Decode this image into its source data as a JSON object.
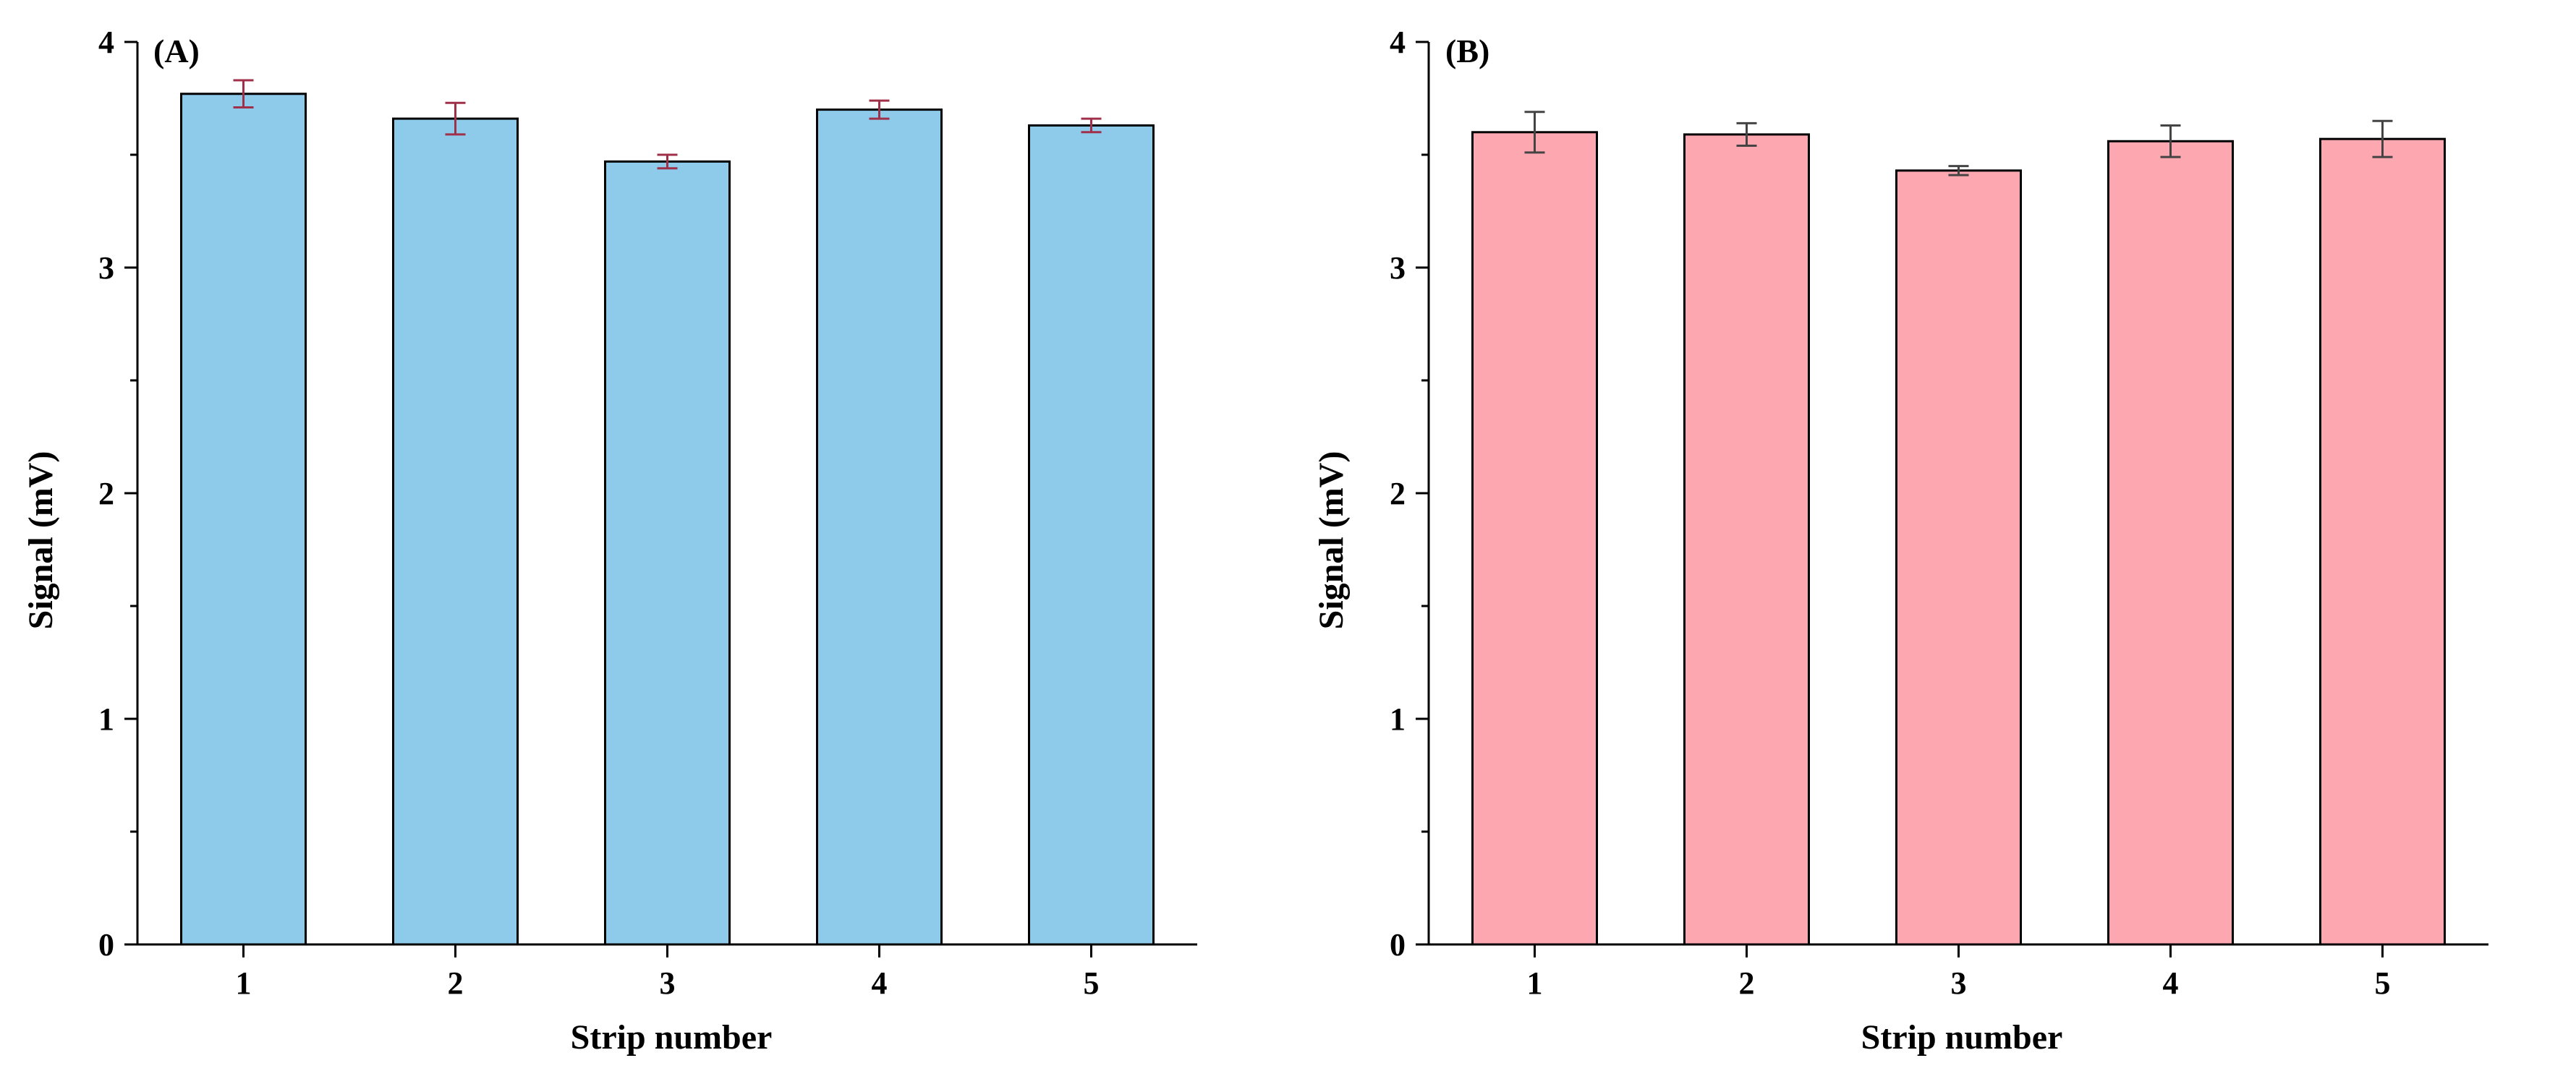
{
  "colors": {
    "panel_a_fill": "#8ecae9",
    "panel_b_fill": "#fda7b0",
    "panel_a_errorbar": "#a0304a",
    "panel_b_errorbar": "#444444",
    "axis": "#000000"
  },
  "chart_data": [
    {
      "type": "bar",
      "panel_label": "(A)",
      "categories": [
        "1",
        "2",
        "3",
        "4",
        "5"
      ],
      "values": [
        3.77,
        3.66,
        3.47,
        3.7,
        3.63
      ],
      "errors": [
        0.06,
        0.07,
        0.03,
        0.04,
        0.03
      ],
      "xlabel": "Strip number",
      "ylabel": "Signal (mV)",
      "ylim": [
        0,
        4
      ],
      "yticks": [
        "0",
        "1",
        "2",
        "3",
        "4"
      ],
      "grid": false
    },
    {
      "type": "bar",
      "panel_label": "(B)",
      "categories": [
        "1",
        "2",
        "3",
        "4",
        "5"
      ],
      "values": [
        3.6,
        3.59,
        3.43,
        3.56,
        3.57
      ],
      "errors": [
        0.09,
        0.05,
        0.02,
        0.07,
        0.08
      ],
      "xlabel": "Strip number",
      "ylabel": "Signal (mV)",
      "ylim": [
        0,
        4
      ],
      "yticks": [
        "0",
        "1",
        "2",
        "3",
        "4"
      ],
      "grid": false
    }
  ]
}
